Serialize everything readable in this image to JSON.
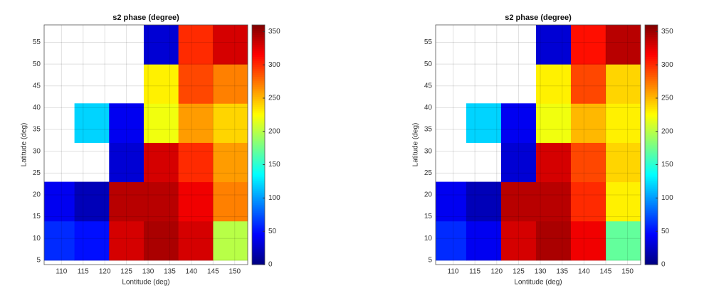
{
  "chart_data": [
    {
      "type": "heatmap",
      "title": "s2 phase (degree)",
      "xlabel": "Lontitude (deg)",
      "ylabel": "Latitude (deg)",
      "xlim": [
        106,
        153
      ],
      "ylim": [
        4,
        59
      ],
      "xticks": [
        110,
        115,
        120,
        125,
        130,
        135,
        140,
        145,
        150
      ],
      "yticks": [
        5,
        10,
        15,
        20,
        25,
        30,
        35,
        40,
        45,
        50,
        55
      ],
      "x": [
        109,
        117,
        125,
        133,
        141,
        149
      ],
      "y": [
        9.5,
        18.5,
        27.5,
        36.5,
        45.5,
        54.5
      ],
      "z": [
        [
          60,
          50,
          330,
          345,
          330,
          200
        ],
        [
          40,
          20,
          340,
          340,
          320,
          270
        ],
        [
          null,
          null,
          30,
          330,
          300,
          260
        ],
        [
          null,
          120,
          40,
          220,
          260,
          240
        ],
        [
          null,
          null,
          null,
          230,
          290,
          270
        ],
        [
          null,
          null,
          null,
          30,
          300,
          330
        ]
      ],
      "colormap": "jet",
      "clim": [
        0,
        360
      ],
      "cticks": [
        0,
        50,
        100,
        150,
        200,
        250,
        300,
        350
      ],
      "grid": true
    },
    {
      "type": "heatmap",
      "title": "s2 phase (degree)",
      "xlabel": "Lontitude (deg)",
      "ylabel": "Latitude (deg)",
      "xlim": [
        106,
        153
      ],
      "ylim": [
        4,
        59
      ],
      "xticks": [
        110,
        115,
        120,
        125,
        130,
        135,
        140,
        145,
        150
      ],
      "yticks": [
        5,
        10,
        15,
        20,
        25,
        30,
        35,
        40,
        45,
        50,
        55
      ],
      "x": [
        109,
        117,
        125,
        133,
        141,
        149
      ],
      "y": [
        9.5,
        18.5,
        27.5,
        36.5,
        45.5,
        54.5
      ],
      "z": [
        [
          60,
          40,
          330,
          345,
          320,
          170
        ],
        [
          40,
          20,
          340,
          340,
          300,
          230
        ],
        [
          null,
          null,
          30,
          330,
          290,
          240
        ],
        [
          null,
          120,
          40,
          220,
          250,
          230
        ],
        [
          null,
          null,
          null,
          230,
          290,
          240
        ],
        [
          null,
          null,
          null,
          30,
          310,
          340
        ]
      ],
      "colormap": "jet",
      "clim": [
        0,
        360
      ],
      "cticks": [
        0,
        50,
        100,
        150,
        200,
        250,
        300,
        350
      ],
      "grid": true
    }
  ]
}
